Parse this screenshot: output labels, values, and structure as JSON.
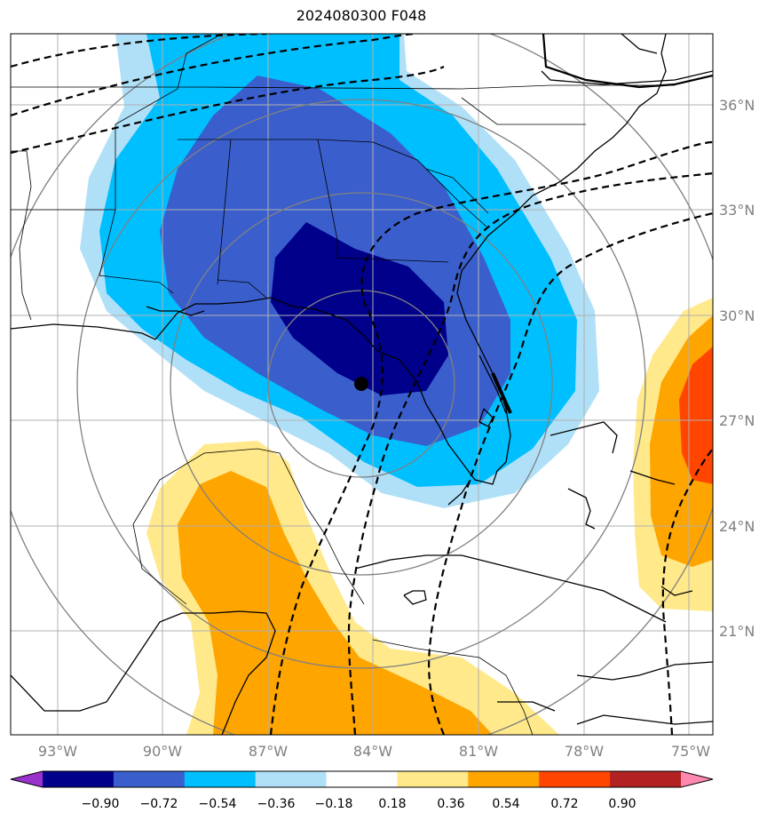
{
  "title": "2024080300 F048",
  "longitude_labels": [
    "93°W",
    "90°W",
    "87°W",
    "84°W",
    "81°W",
    "78°W",
    "75°W"
  ],
  "latitude_labels": [
    "36°N",
    "33°N",
    "30°N",
    "27°N",
    "24°N",
    "21°N"
  ],
  "colorbar": {
    "colors": [
      "#9932cc",
      "#00008b",
      "#3a5fcd",
      "#00bfff",
      "#b0e0f8",
      "#ffffff",
      "#ffe98a",
      "#ffa500",
      "#ff4500",
      "#b22222",
      "#ff88b0"
    ],
    "tick_labels": [
      "−0.90",
      "−0.72",
      "−0.54",
      "−0.36",
      "−0.18",
      "0.18",
      "0.36",
      "0.54",
      "0.72",
      "0.90"
    ]
  },
  "center_marker": {
    "lon": -84.3,
    "lat": 28.0
  }
}
